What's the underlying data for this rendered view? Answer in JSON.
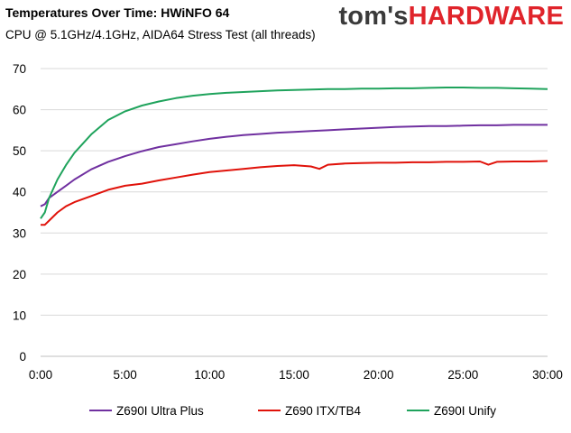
{
  "branding": {
    "logo_part1": "tom's",
    "logo_part2": "HARDWARE"
  },
  "chart_data": {
    "type": "line",
    "title": "Temperatures Over Time: HWiNFO 64",
    "subtitle": "CPU @ 5.1GHz/4.1GHz,  AIDA64 Stress Test (all threads)",
    "xlabel": "",
    "ylabel": "",
    "xlim": [
      0,
      30
    ],
    "ylim": [
      0,
      70
    ],
    "x_ticks": [
      0,
      5,
      10,
      15,
      20,
      25,
      30
    ],
    "x_tick_labels": [
      "0:00",
      "5:00",
      "10:00",
      "15:00",
      "20:00",
      "25:00",
      "30:00"
    ],
    "y_ticks": [
      0,
      10,
      20,
      30,
      40,
      50,
      60,
      70
    ],
    "y_tick_labels": [
      "0",
      "10",
      "20",
      "30",
      "40",
      "50",
      "60",
      "70"
    ],
    "grid": "horizontal",
    "legend_position": "bottom",
    "x_unit": "minutes",
    "series": [
      {
        "name": "Z690I Ultra Plus",
        "color": "#7030a0",
        "x": [
          0,
          0.25,
          0.5,
          1,
          1.5,
          2,
          3,
          4,
          5,
          6,
          7,
          8,
          9,
          10,
          11,
          12,
          13,
          14,
          15,
          16,
          17,
          18,
          19,
          20,
          21,
          22,
          23,
          24,
          25,
          26,
          27,
          28,
          29,
          30
        ],
        "y": [
          36.5,
          37,
          38.5,
          40,
          41.5,
          43,
          45.5,
          47.3,
          48.7,
          49.9,
          50.9,
          51.6,
          52.3,
          52.9,
          53.4,
          53.8,
          54.1,
          54.4,
          54.6,
          54.8,
          55,
          55.2,
          55.4,
          55.6,
          55.8,
          55.9,
          56,
          56,
          56.1,
          56.2,
          56.2,
          56.3,
          56.3,
          56.3
        ]
      },
      {
        "name": "Z690 ITX/TB4",
        "color": "#e0120a",
        "x": [
          0,
          0.25,
          0.5,
          1,
          1.5,
          2,
          3,
          4,
          5,
          6,
          7,
          8,
          9,
          10,
          11,
          12,
          13,
          14,
          15,
          16,
          16.5,
          17,
          18,
          19,
          20,
          21,
          22,
          23,
          24,
          25,
          26,
          26.5,
          27,
          28,
          29,
          30
        ],
        "y": [
          32,
          32,
          33,
          35,
          36.5,
          37.5,
          39,
          40.5,
          41.5,
          42,
          42.8,
          43.5,
          44.2,
          44.8,
          45.2,
          45.6,
          46,
          46.3,
          46.5,
          46.2,
          45.6,
          46.6,
          46.9,
          47,
          47.1,
          47.1,
          47.2,
          47.2,
          47.3,
          47.3,
          47.4,
          46.6,
          47.3,
          47.4,
          47.4,
          47.5
        ]
      },
      {
        "name": "Z690I Unify",
        "color": "#1fa35c",
        "x": [
          0,
          0.25,
          0.5,
          1,
          1.5,
          2,
          3,
          4,
          5,
          6,
          7,
          8,
          9,
          10,
          11,
          12,
          13,
          14,
          15,
          16,
          17,
          18,
          19,
          20,
          21,
          22,
          23,
          24,
          25,
          26,
          27,
          28,
          29,
          30
        ],
        "y": [
          33.5,
          35,
          38.5,
          43,
          46.5,
          49.5,
          54,
          57.5,
          59.6,
          61,
          62,
          62.8,
          63.4,
          63.8,
          64.1,
          64.3,
          64.5,
          64.7,
          64.8,
          64.9,
          65,
          65,
          65.1,
          65.1,
          65.2,
          65.2,
          65.3,
          65.4,
          65.4,
          65.3,
          65.3,
          65.2,
          65.1,
          65
        ]
      }
    ]
  }
}
